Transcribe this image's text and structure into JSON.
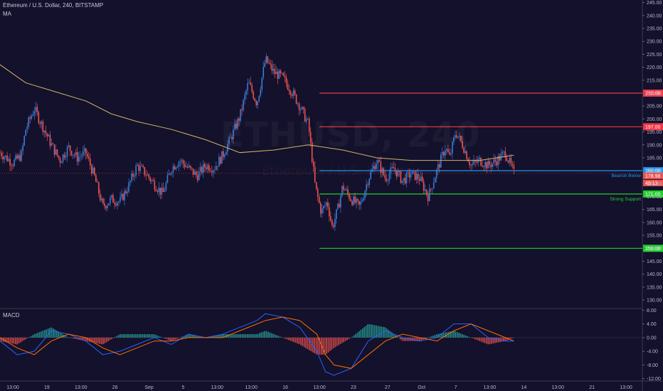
{
  "header": {
    "title": "Ethereum / U.S. Dollar, 240, BITSTAMP",
    "indicator": "MA",
    "macd_label": "MACD"
  },
  "watermark": {
    "symbol": "ETHUSD, 240",
    "name": "Ethereum / U.S. Dollar"
  },
  "colors": {
    "background": "#13112b",
    "candle_up": "#3a7bd5",
    "candle_down": "#ef5350",
    "ma": "#d4b26a",
    "resistance": "#f23645",
    "support": "#22d12a",
    "current_level": "#2196f3",
    "macd_line": "#2962ff",
    "signal_line": "#ff6d00",
    "hist_pos": "#26a69a",
    "hist_neg": "#ef5350"
  },
  "chart_data": {
    "type": "line",
    "title": "Ethereum / U.S. Dollar, 240, BITSTAMP",
    "price_axis": {
      "ylim": [
        127,
        246
      ],
      "ticks": [
        "245.00",
        "240.00",
        "235.00",
        "230.00",
        "225.00",
        "220.00",
        "215.00",
        "210.00",
        "205.00",
        "200.00",
        "195.00",
        "190.00",
        "185.00",
        "180.00",
        "175.00",
        "170.00",
        "165.00",
        "160.00",
        "155.00",
        "150.00",
        "145.00",
        "140.00",
        "135.00",
        "130.00"
      ]
    },
    "macd_axis": {
      "ylim": [
        -12.5,
        8.5
      ],
      "ticks": [
        "8.00",
        "4.00",
        "0.00",
        "-4.00",
        "-8.00",
        "-12.00"
      ]
    },
    "time_axis": {
      "labels": [
        "13:00",
        "19",
        "13:00",
        "26",
        "Sep",
        "5",
        "13:00",
        "13:00",
        "16",
        "13:00",
        "23",
        "27",
        "Oct",
        "7",
        "13:00",
        "14",
        "13:00",
        "21",
        "13:00"
      ]
    },
    "price_series": [
      {
        "x": 0,
        "y": 187
      },
      {
        "x": 1.5,
        "y": 183
      },
      {
        "x": 2.5,
        "y": 186
      },
      {
        "x": 3,
        "y": 196
      },
      {
        "x": 4,
        "y": 204
      },
      {
        "x": 5,
        "y": 197
      },
      {
        "x": 6,
        "y": 190
      },
      {
        "x": 7,
        "y": 184
      },
      {
        "x": 8,
        "y": 189
      },
      {
        "x": 9,
        "y": 185
      },
      {
        "x": 10,
        "y": 187
      },
      {
        "x": 11,
        "y": 178
      },
      {
        "x": 12,
        "y": 166
      },
      {
        "x": 13,
        "y": 169
      },
      {
        "x": 14,
        "y": 168
      },
      {
        "x": 15,
        "y": 174
      },
      {
        "x": 16,
        "y": 182
      },
      {
        "x": 17,
        "y": 179
      },
      {
        "x": 18,
        "y": 175
      },
      {
        "x": 19,
        "y": 171
      },
      {
        "x": 20,
        "y": 181
      },
      {
        "x": 21,
        "y": 184
      },
      {
        "x": 22,
        "y": 181
      },
      {
        "x": 23,
        "y": 178
      },
      {
        "x": 24,
        "y": 182
      },
      {
        "x": 25,
        "y": 181
      },
      {
        "x": 26,
        "y": 186
      },
      {
        "x": 27,
        "y": 193
      },
      {
        "x": 28,
        "y": 201
      },
      {
        "x": 29,
        "y": 214
      },
      {
        "x": 30,
        "y": 206
      },
      {
        "x": 31,
        "y": 223
      },
      {
        "x": 32,
        "y": 218
      },
      {
        "x": 33,
        "y": 216
      },
      {
        "x": 34,
        "y": 211
      },
      {
        "x": 35,
        "y": 205
      },
      {
        "x": 36,
        "y": 198
      },
      {
        "x": 36.8,
        "y": 174
      },
      {
        "x": 37.5,
        "y": 164
      },
      {
        "x": 38.2,
        "y": 168
      },
      {
        "x": 38.8,
        "y": 158
      },
      {
        "x": 39.5,
        "y": 166
      },
      {
        "x": 40,
        "y": 174
      },
      {
        "x": 41,
        "y": 169
      },
      {
        "x": 42,
        "y": 166
      },
      {
        "x": 43,
        "y": 177
      },
      {
        "x": 44,
        "y": 184
      },
      {
        "x": 45,
        "y": 177
      },
      {
        "x": 46,
        "y": 181
      },
      {
        "x": 47,
        "y": 176
      },
      {
        "x": 48,
        "y": 179
      },
      {
        "x": 49,
        "y": 177
      },
      {
        "x": 50,
        "y": 170
      },
      {
        "x": 51,
        "y": 180
      },
      {
        "x": 52,
        "y": 189
      },
      {
        "x": 52.5,
        "y": 185
      },
      {
        "x": 53.2,
        "y": 195
      },
      {
        "x": 54,
        "y": 190
      },
      {
        "x": 55,
        "y": 182
      },
      {
        "x": 56,
        "y": 184
      },
      {
        "x": 57,
        "y": 182
      },
      {
        "x": 58,
        "y": 184
      },
      {
        "x": 59,
        "y": 187
      },
      {
        "x": 60,
        "y": 179
      }
    ],
    "ma_series": [
      {
        "x": 0,
        "y": 221
      },
      {
        "x": 3,
        "y": 214
      },
      {
        "x": 6,
        "y": 211
      },
      {
        "x": 10,
        "y": 207
      },
      {
        "x": 13,
        "y": 202
      },
      {
        "x": 16,
        "y": 199
      },
      {
        "x": 20,
        "y": 196
      },
      {
        "x": 24,
        "y": 192
      },
      {
        "x": 28,
        "y": 187
      },
      {
        "x": 32,
        "y": 188
      },
      {
        "x": 36,
        "y": 190
      },
      {
        "x": 40,
        "y": 188
      },
      {
        "x": 44,
        "y": 185
      },
      {
        "x": 48,
        "y": 184
      },
      {
        "x": 52,
        "y": 184
      },
      {
        "x": 56,
        "y": 184
      },
      {
        "x": 60,
        "y": 186
      }
    ],
    "levels": [
      {
        "value": 210,
        "label": "210.00",
        "kind": "resistance"
      },
      {
        "value": 197,
        "label": "197.00",
        "kind": "resistance"
      },
      {
        "value": 180,
        "label": "180.00",
        "kind": "current",
        "note": "Bearish Below"
      },
      {
        "value": 171,
        "label": "171.00",
        "kind": "support",
        "note": "Strong Support"
      },
      {
        "value": 150,
        "label": "150.00",
        "kind": "support"
      }
    ],
    "last_price": {
      "value": 178.98,
      "label": "178.98"
    },
    "countdown_label": "49:13",
    "macd_series": [
      {
        "x": 0,
        "y": -1
      },
      {
        "x": 2,
        "y": -5
      },
      {
        "x": 4,
        "y": -4
      },
      {
        "x": 6,
        "y": 2
      },
      {
        "x": 8,
        "y": 1
      },
      {
        "x": 10,
        "y": -1
      },
      {
        "x": 12,
        "y": -5
      },
      {
        "x": 14,
        "y": -4
      },
      {
        "x": 16,
        "y": -2
      },
      {
        "x": 18,
        "y": 0
      },
      {
        "x": 20,
        "y": -2
      },
      {
        "x": 22,
        "y": 1
      },
      {
        "x": 24,
        "y": 0
      },
      {
        "x": 26,
        "y": 1
      },
      {
        "x": 28,
        "y": 3
      },
      {
        "x": 30,
        "y": 5
      },
      {
        "x": 31,
        "y": 7
      },
      {
        "x": 33,
        "y": 6
      },
      {
        "x": 35,
        "y": 3
      },
      {
        "x": 37,
        "y": -4
      },
      {
        "x": 38,
        "y": -10
      },
      {
        "x": 39,
        "y": -11
      },
      {
        "x": 41,
        "y": -9
      },
      {
        "x": 43,
        "y": -1
      },
      {
        "x": 45,
        "y": 2
      },
      {
        "x": 47,
        "y": 0
      },
      {
        "x": 49,
        "y": -1
      },
      {
        "x": 51,
        "y": 0
      },
      {
        "x": 53,
        "y": 4
      },
      {
        "x": 55,
        "y": 4
      },
      {
        "x": 57,
        "y": 0
      },
      {
        "x": 59,
        "y": -1
      },
      {
        "x": 60,
        "y": -1
      }
    ],
    "signal_series": [
      {
        "x": 0,
        "y": 0
      },
      {
        "x": 2,
        "y": -3
      },
      {
        "x": 4,
        "y": -5
      },
      {
        "x": 6,
        "y": -1
      },
      {
        "x": 8,
        "y": 1
      },
      {
        "x": 10,
        "y": 0
      },
      {
        "x": 12,
        "y": -3
      },
      {
        "x": 14,
        "y": -5
      },
      {
        "x": 16,
        "y": -3
      },
      {
        "x": 18,
        "y": -1
      },
      {
        "x": 20,
        "y": -1
      },
      {
        "x": 22,
        "y": 0
      },
      {
        "x": 24,
        "y": 0
      },
      {
        "x": 26,
        "y": 0
      },
      {
        "x": 28,
        "y": 2
      },
      {
        "x": 30,
        "y": 4
      },
      {
        "x": 31,
        "y": 5
      },
      {
        "x": 33,
        "y": 6
      },
      {
        "x": 35,
        "y": 5
      },
      {
        "x": 37,
        "y": 1
      },
      {
        "x": 38,
        "y": -5
      },
      {
        "x": 39,
        "y": -8
      },
      {
        "x": 41,
        "y": -9
      },
      {
        "x": 43,
        "y": -5
      },
      {
        "x": 45,
        "y": -1
      },
      {
        "x": 47,
        "y": 1
      },
      {
        "x": 49,
        "y": 0
      },
      {
        "x": 51,
        "y": -1
      },
      {
        "x": 53,
        "y": 2
      },
      {
        "x": 55,
        "y": 4
      },
      {
        "x": 57,
        "y": 2
      },
      {
        "x": 59,
        "y": 0
      },
      {
        "x": 60,
        "y": -1
      }
    ]
  }
}
